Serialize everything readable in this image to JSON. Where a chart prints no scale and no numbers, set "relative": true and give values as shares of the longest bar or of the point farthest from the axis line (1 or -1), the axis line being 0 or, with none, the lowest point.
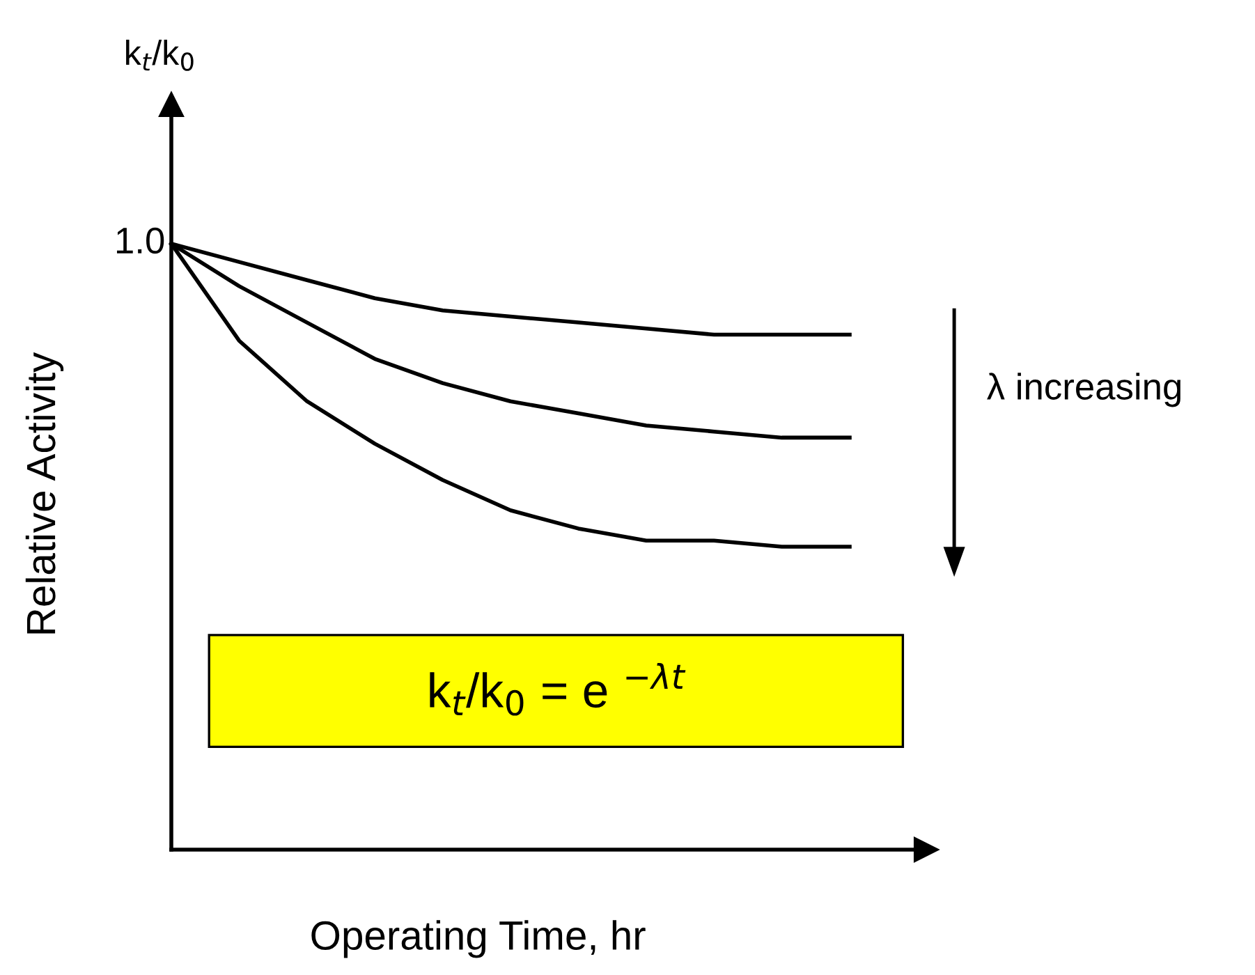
{
  "chart_data": {
    "type": "line",
    "relative": true,
    "xlabel": "Operating Time, hr",
    "ylabel": "Relative Activity",
    "categories": [
      null,
      null,
      null,
      null,
      null,
      null,
      null,
      null,
      null,
      null,
      null
    ],
    "series": [
      {
        "color": "#000000",
        "values": [
          1,
          0.97,
          0.94,
          0.91,
          0.89,
          0.88,
          0.87,
          0.86,
          0.85,
          0.85,
          0.85
        ]
      },
      {
        "color": "#000000",
        "values": [
          1,
          0.93,
          0.87,
          0.81,
          0.77,
          0.74,
          0.72,
          0.7,
          0.69,
          0.68,
          0.68
        ]
      },
      {
        "color": "#000000",
        "values": [
          1,
          0.84,
          0.74,
          0.67,
          0.61,
          0.56,
          0.53,
          0.51,
          0.51,
          0.5,
          0.5
        ]
      }
    ],
    "annotations": [
      "k$_{t}$/k$_{0}$",
      "1.0",
      "λ increasing",
      "k$_{t}$/k$_{0}$ = e $^{−λt}$"
    ],
    "grid": false,
    "legend": false,
    "marker": "none",
    "line_style": "solid"
  }
}
